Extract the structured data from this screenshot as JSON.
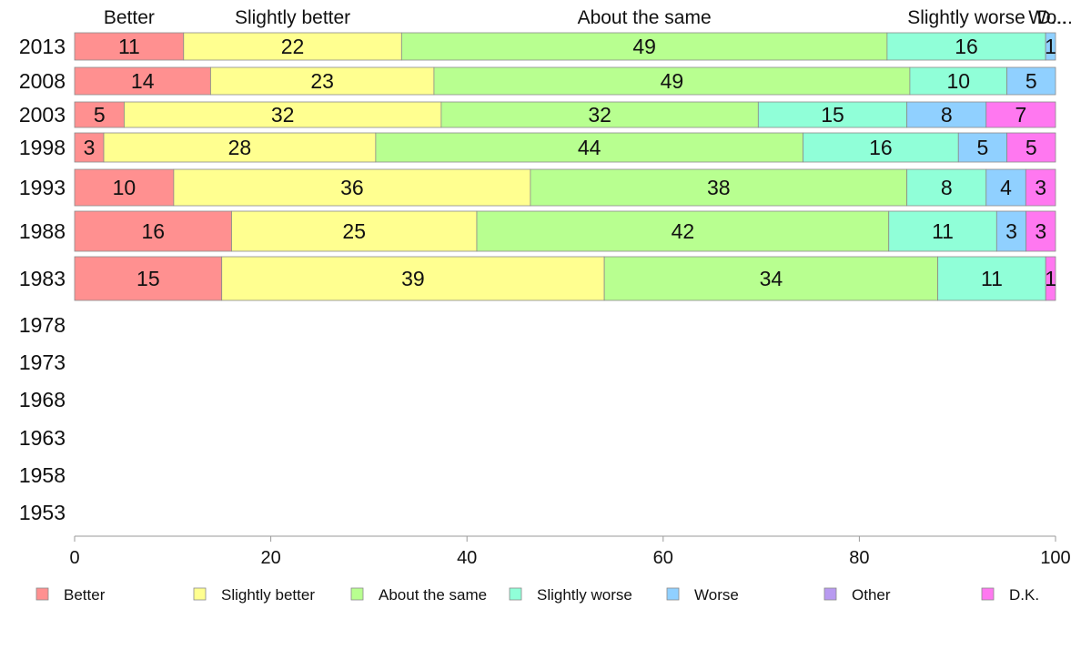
{
  "chart_data": {
    "type": "bar",
    "orientation": "horizontal",
    "stacked": true,
    "categories": [
      "2013",
      "2008",
      "2003",
      "1998",
      "1993",
      "1988",
      "1983",
      "1978",
      "1973",
      "1968",
      "1963",
      "1958",
      "1953"
    ],
    "series": [
      {
        "name": "Better",
        "color": "#ff9090",
        "values": [
          11,
          14,
          5,
          3,
          10,
          16,
          15,
          null,
          null,
          null,
          null,
          null,
          null
        ]
      },
      {
        "name": "Slightly better",
        "color": "#ffff90",
        "values": [
          22,
          23,
          32,
          28,
          36,
          25,
          39,
          null,
          null,
          null,
          null,
          null,
          null
        ]
      },
      {
        "name": "About the same",
        "color": "#b8ff90",
        "values": [
          49,
          49,
          32,
          44,
          38,
          42,
          34,
          null,
          null,
          null,
          null,
          null,
          null
        ]
      },
      {
        "name": "Slightly worse",
        "color": "#90ffd8",
        "values": [
          16,
          10,
          15,
          16,
          8,
          11,
          11,
          null,
          null,
          null,
          null,
          null,
          null
        ]
      },
      {
        "name": "Worse",
        "color": "#90d0ff",
        "values": [
          1,
          5,
          8,
          5,
          4,
          3,
          0,
          null,
          null,
          null,
          null,
          null,
          null
        ]
      },
      {
        "name": "Other",
        "color": "#b89af0",
        "values": [
          0,
          0,
          0,
          0,
          0,
          0,
          0,
          null,
          null,
          null,
          null,
          null,
          null
        ]
      },
      {
        "name": "D.K.",
        "color": "#ff78f0",
        "values": [
          0,
          0,
          7,
          5,
          3,
          3,
          1,
          null,
          null,
          null,
          null,
          null,
          null
        ]
      }
    ],
    "top_labels": [
      "Better",
      "Slightly better",
      "About the same",
      "Slightly worse",
      "Wo...",
      "D..."
    ],
    "xlim": [
      0,
      100
    ],
    "xticks": [
      0,
      20,
      40,
      60,
      80,
      100
    ],
    "grid": false,
    "legend_position": "bottom"
  }
}
